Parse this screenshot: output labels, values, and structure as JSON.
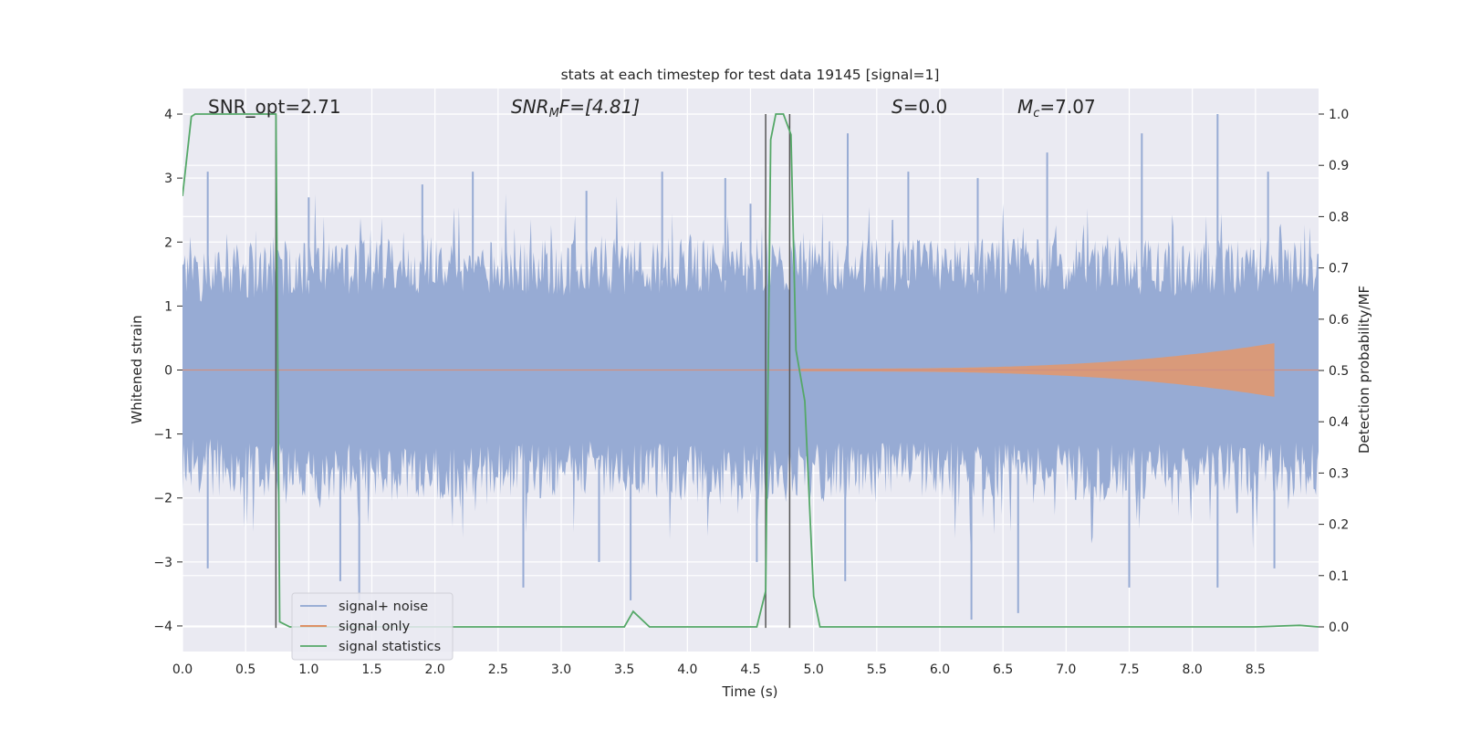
{
  "chart_data": {
    "type": "line",
    "title": "stats at each timestep for test data 19145 [signal=1]",
    "xlabel": "Time (s)",
    "ylabel_left": "Whitened strain",
    "ylabel_right": "Detection probability/MF",
    "xlim": [
      0.0,
      9.0
    ],
    "ylim_left": [
      -4.4,
      4.4
    ],
    "ylim_right": [
      0.0,
      1.0
    ],
    "x_ticks": [
      "0.0",
      "0.5",
      "1.0",
      "1.5",
      "2.0",
      "2.5",
      "3.0",
      "3.5",
      "4.0",
      "4.5",
      "5.0",
      "5.5",
      "6.0",
      "6.5",
      "7.0",
      "7.5",
      "8.0",
      "8.5"
    ],
    "y_ticks_left": [
      "4",
      "3",
      "2",
      "1",
      "0",
      "−1",
      "−2",
      "−3",
      "−4"
    ],
    "y_ticks_right": [
      "1.0",
      "0.9",
      "0.8",
      "0.7",
      "0.6",
      "0.5",
      "0.4",
      "0.3",
      "0.2",
      "0.1",
      "0.0"
    ],
    "grid": true,
    "legend_position": "lower-left",
    "annotations": {
      "snr_opt": "SNR_opt=2.71",
      "snr_mf_var": "SNR",
      "snr_mf_sub": "M",
      "snr_mf_rest": "F=[4.81]",
      "s_var": "S",
      "s_rest": "=0.0",
      "mc_var": "M",
      "mc_sub": "c",
      "mc_rest": "=7.07"
    },
    "event_markers_s": [
      0.74,
      4.62,
      4.81
    ],
    "series": [
      {
        "name": "signal+ noise",
        "color": "#8fa6d1",
        "envelope_upper": [
          [
            0,
            1.5
          ],
          [
            1,
            1.6
          ],
          [
            2,
            1.65
          ],
          [
            3,
            1.6
          ],
          [
            4,
            1.65
          ],
          [
            5,
            1.6
          ],
          [
            6,
            1.6
          ],
          [
            7,
            1.65
          ],
          [
            8,
            1.6
          ],
          [
            9,
            1.6
          ]
        ],
        "envelope_lower": [
          [
            0,
            -1.5
          ],
          [
            1,
            -1.6
          ],
          [
            2,
            -1.6
          ],
          [
            3,
            -1.55
          ],
          [
            4,
            -1.6
          ],
          [
            5,
            -1.6
          ],
          [
            6,
            -1.55
          ],
          [
            7,
            -1.6
          ],
          [
            8,
            -1.6
          ],
          [
            9,
            -1.55
          ]
        ],
        "peaks_up": [
          [
            0.2,
            3.1
          ],
          [
            1.0,
            2.7
          ],
          [
            1.9,
            2.9
          ],
          [
            2.3,
            3.1
          ],
          [
            3.2,
            2.8
          ],
          [
            3.8,
            3.1
          ],
          [
            4.3,
            3.0
          ],
          [
            4.5,
            2.6
          ],
          [
            5.27,
            3.7
          ],
          [
            5.75,
            3.1
          ],
          [
            6.3,
            3.0
          ],
          [
            6.85,
            3.4
          ],
          [
            7.6,
            3.7
          ],
          [
            8.2,
            4.0
          ],
          [
            8.6,
            3.1
          ]
        ],
        "peaks_down": [
          [
            0.2,
            -3.1
          ],
          [
            1.25,
            -3.3
          ],
          [
            1.4,
            -3.6
          ],
          [
            2.7,
            -3.4
          ],
          [
            3.3,
            -3.0
          ],
          [
            3.55,
            -3.6
          ],
          [
            4.55,
            -3.0
          ],
          [
            5.25,
            -3.3
          ],
          [
            6.25,
            -3.9
          ],
          [
            6.62,
            -3.8
          ],
          [
            7.5,
            -3.4
          ],
          [
            8.2,
            -3.4
          ],
          [
            8.65,
            -3.1
          ]
        ]
      },
      {
        "name": "signal only",
        "color": "#dd8452",
        "chirp": {
          "start": 4.9,
          "end": 8.65,
          "max_amplitude": 0.4
        }
      },
      {
        "name": "signal statistics",
        "color": "#55a868",
        "x": [
          0.0,
          0.07,
          0.1,
          0.2,
          0.3,
          0.4,
          0.5,
          0.6,
          0.7,
          0.74,
          0.77,
          0.85,
          1.0,
          2.0,
          3.0,
          3.5,
          3.57,
          3.7,
          4.0,
          4.5,
          4.55,
          4.62,
          4.66,
          4.7,
          4.76,
          4.82,
          4.86,
          4.93,
          5.0,
          5.05,
          5.5,
          6.0,
          7.0,
          8.0,
          8.5,
          8.85,
          9.0
        ],
        "y": [
          0.84,
          0.995,
          1.0,
          1.0,
          1.0,
          1.0,
          1.0,
          1.0,
          1.0,
          1.0,
          0.01,
          0.0,
          0.0,
          0.0,
          0.0,
          0.0,
          0.03,
          0.0,
          0.0,
          0.0,
          0.0,
          0.07,
          0.95,
          1.0,
          1.0,
          0.96,
          0.54,
          0.44,
          0.06,
          0.0,
          0.0,
          0.0,
          0.0,
          0.0,
          0.0,
          0.003,
          0.0
        ]
      }
    ]
  }
}
